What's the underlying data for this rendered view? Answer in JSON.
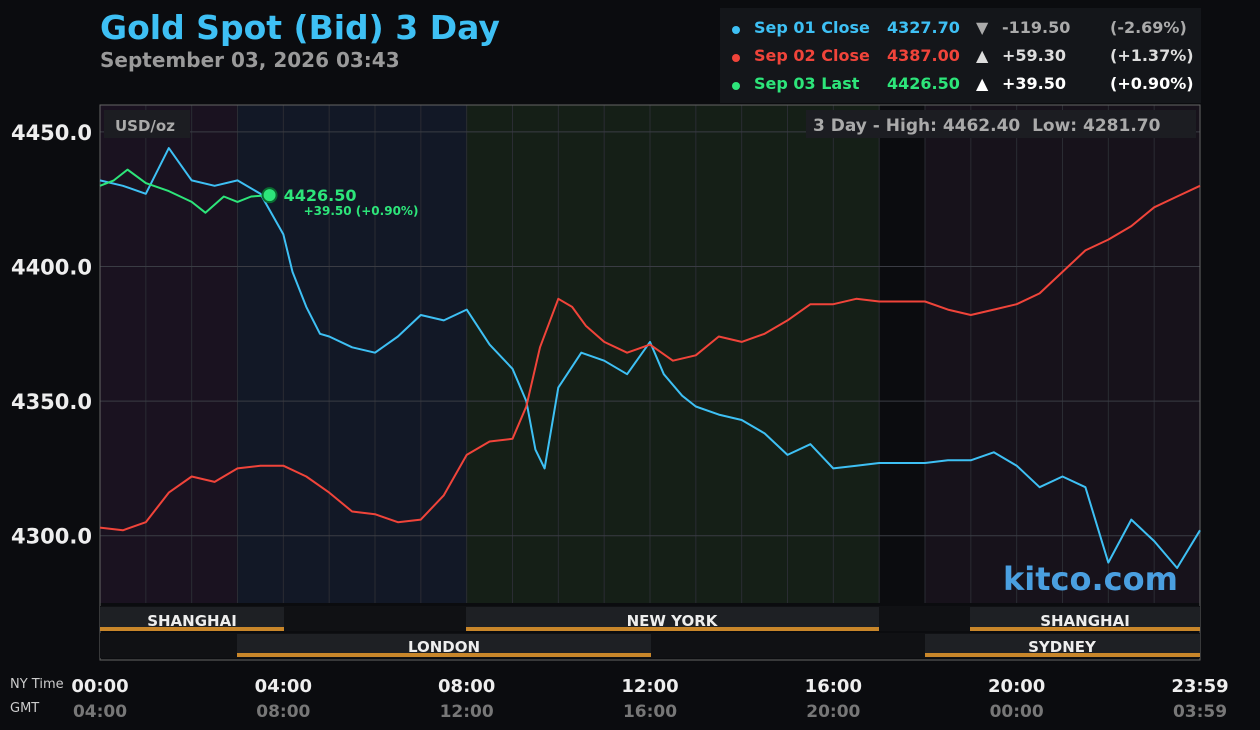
{
  "title": "Gold Spot (Bid) 3 Day",
  "subtitle": "September 03, 2026 03:43",
  "legend": [
    {
      "label": "Sep 01 Close",
      "value": "4327.70",
      "arrow": "▼",
      "change": "-119.50",
      "pct": "(-2.69%)",
      "color": "#3ec0f4",
      "textcolor": "#aaaaaa"
    },
    {
      "label": "Sep 02 Close",
      "value": "4387.00",
      "arrow": "▲",
      "change": "+59.30",
      "pct": "(+1.37%)",
      "color": "#f0443a",
      "textcolor": "#dddddd"
    },
    {
      "label": "Sep 03 Last",
      "value": "4426.50",
      "arrow": "▲",
      "change": "+39.50",
      "pct": "(+0.90%)",
      "color": "#2de57a",
      "textcolor": "#ffffff"
    }
  ],
  "unit_label": "USD/oz",
  "range_text": "3 Day - High: 4462.40  Low: 4281.70",
  "last_tag": {
    "value": "4426.50",
    "change": "+39.50 (+0.90%)"
  },
  "watermark": "kitco.com",
  "sessions_top": [
    "SHANGHAI",
    "NEW YORK",
    "SHANGHAI"
  ],
  "sessions_bottom": [
    "LONDON",
    "SYDNEY"
  ],
  "time_labels": {
    "ny": "NY Time",
    "gmt": "GMT"
  },
  "colors": {
    "sep01": "#3ec0f4",
    "sep02": "#f0443a",
    "sep03": "#2de57a",
    "session_bar": "#c8862a"
  },
  "chart_data": {
    "type": "line",
    "title": "Gold Spot (Bid) 3 Day",
    "ylabel": "USD/oz",
    "ylim": [
      4275,
      4460
    ],
    "xlim": [
      0,
      24
    ],
    "y_ticks": [
      "4300.0",
      "4350.0",
      "4400.0",
      "4450.0"
    ],
    "y_tick_values": [
      4300,
      4350,
      4400,
      4450
    ],
    "x_ticks_ny": [
      "00:00",
      "04:00",
      "08:00",
      "12:00",
      "16:00",
      "20:00",
      "23:59"
    ],
    "x_ticks_gmt": [
      "04:00",
      "08:00",
      "12:00",
      "16:00",
      "20:00",
      "00:00",
      "03:59"
    ],
    "x_tick_values": [
      0,
      4,
      8,
      12,
      16,
      20,
      24
    ],
    "grid": true,
    "series": [
      {
        "name": "Sep 01 Close",
        "x": [
          0,
          0.5,
          1,
          1.5,
          2,
          2.5,
          3,
          3.5,
          4,
          4.2,
          4.5,
          4.8,
          5,
          5.5,
          6,
          6.5,
          7,
          7.5,
          8,
          8.5,
          9,
          9.3,
          9.5,
          9.7,
          10,
          10.5,
          11,
          11.5,
          12,
          12.3,
          12.7,
          13,
          13.5,
          14,
          14.5,
          15,
          15.5,
          16,
          16.5,
          17,
          17.5,
          18,
          18.5,
          19,
          19.5,
          20,
          20.5,
          21,
          21.5,
          22,
          22.5,
          23,
          23.5,
          24
        ],
        "values": [
          4432,
          4430,
          4427,
          4444,
          4432,
          4430,
          4432,
          4427,
          4412,
          4398,
          4385,
          4375,
          4374,
          4370,
          4368,
          4374,
          4382,
          4380,
          4384,
          4371,
          4362,
          4350,
          4332,
          4325,
          4355,
          4368,
          4365,
          4360,
          4372,
          4360,
          4352,
          4348,
          4345,
          4343,
          4338,
          4330,
          4334,
          4325,
          4326,
          4327,
          4327,
          4327,
          4328,
          4328,
          4331,
          4326,
          4318,
          4322,
          4318,
          4290,
          4306,
          4298,
          4288,
          4302
        ]
      },
      {
        "name": "Sep 02 Close",
        "x": [
          0,
          0.5,
          1,
          1.5,
          2,
          2.5,
          3,
          3.5,
          4,
          4.5,
          5,
          5.5,
          6,
          6.5,
          7,
          7.5,
          8,
          8.5,
          9,
          9.3,
          9.6,
          10,
          10.3,
          10.6,
          11,
          11.5,
          12,
          12.5,
          13,
          13.5,
          14,
          14.5,
          15,
          15.5,
          16,
          16.5,
          17,
          17.5,
          18,
          18.5,
          19,
          19.5,
          20,
          20.5,
          21,
          21.5,
          22,
          22.5,
          23,
          23.5,
          24
        ],
        "values": [
          4303,
          4302,
          4305,
          4316,
          4322,
          4320,
          4325,
          4326,
          4326,
          4322,
          4316,
          4309,
          4308,
          4305,
          4306,
          4315,
          4330,
          4335,
          4336,
          4348,
          4370,
          4388,
          4385,
          4378,
          4372,
          4368,
          4371,
          4365,
          4367,
          4374,
          4372,
          4375,
          4380,
          4386,
          4386,
          4388,
          4387,
          4387,
          4387,
          4384,
          4382,
          4384,
          4386,
          4390,
          4398,
          4406,
          4410,
          4415,
          4422,
          4426,
          4430
        ]
      },
      {
        "name": "Sep 03 Last",
        "x": [
          0,
          0.3,
          0.6,
          1,
          1.5,
          2,
          2.3,
          2.7,
          3,
          3.3,
          3.7
        ],
        "values": [
          4430,
          4432,
          4436,
          4431,
          4428,
          4424,
          4420,
          4426,
          4424,
          4426,
          4426.5
        ]
      }
    ]
  }
}
